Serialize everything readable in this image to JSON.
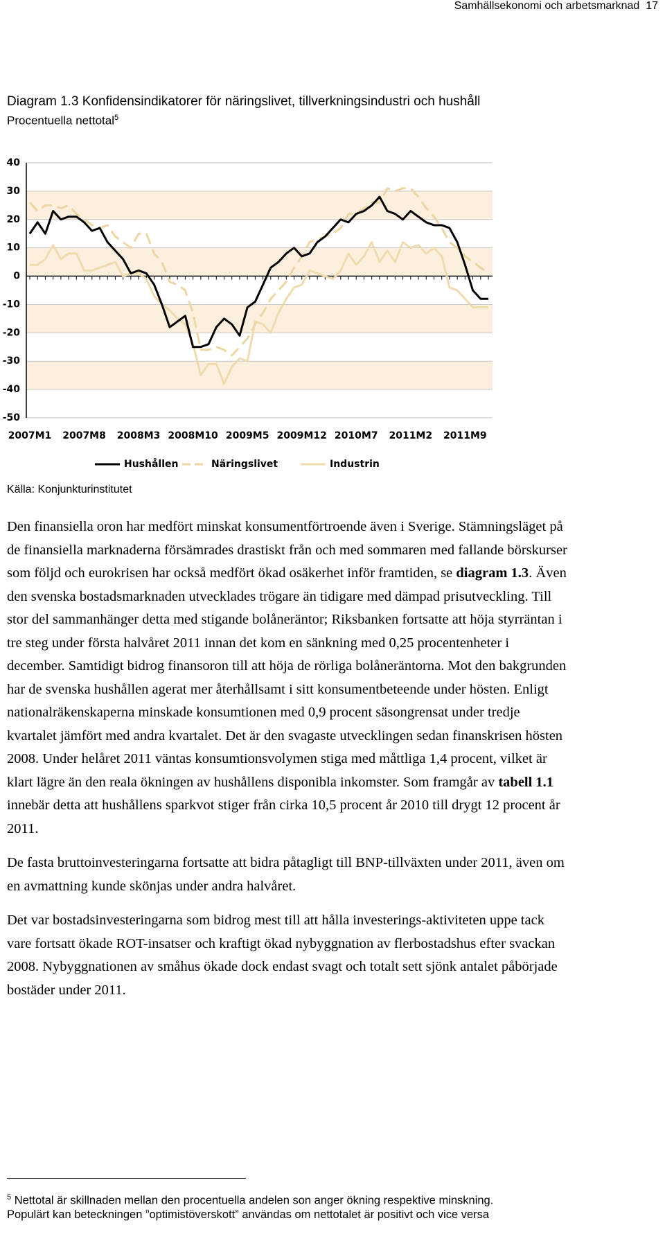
{
  "header": {
    "running_title": "Samhällsekonomi och arbetsmarknad",
    "page_number": "17"
  },
  "chart_data": {
    "type": "line",
    "title": "Diagram 1.3 Konfidensindikatorer för näringslivet, tillverkningsindustri och hushåll",
    "subtitle": "Procentuella nettotal",
    "subtitle_note": "5",
    "categories": [
      "2007M1",
      null,
      null,
      null,
      null,
      null,
      null,
      "2007M8",
      null,
      null,
      null,
      null,
      null,
      null,
      "2008M3",
      null,
      null,
      null,
      null,
      null,
      null,
      "2008M10",
      null,
      null,
      null,
      null,
      null,
      null,
      "2009M5",
      null,
      null,
      null,
      null,
      null,
      null,
      "2009M12",
      null,
      null,
      null,
      null,
      null,
      null,
      "2010M7",
      null,
      null,
      null,
      null,
      null,
      null,
      "2011M2",
      null,
      null,
      null,
      null,
      null,
      null,
      "2011M9",
      null,
      null,
      null
    ],
    "series": [
      {
        "name": "Hushållen",
        "color": "#000000",
        "style": "solid",
        "values": [
          15,
          19,
          15,
          23,
          20,
          21,
          21,
          19,
          16,
          17,
          12,
          9,
          6,
          1,
          2,
          1,
          -3,
          -10,
          -18,
          -16,
          -14,
          -25,
          -25,
          -24,
          -18,
          -15,
          -17,
          -21,
          -11,
          -9,
          -3,
          3,
          5,
          8,
          10,
          7,
          8,
          12,
          14,
          17,
          20,
          19,
          22,
          23,
          25,
          28,
          23,
          22,
          20,
          23,
          21,
          19,
          18,
          18,
          17,
          12,
          4,
          -5,
          -8,
          -8
        ]
      },
      {
        "name": "Näringslivet",
        "color": "#eed6a4",
        "style": "dashed",
        "values": [
          26,
          23,
          25,
          25,
          24,
          25,
          22,
          20,
          18,
          17,
          18,
          14,
          12,
          10,
          15,
          15,
          8,
          5,
          -2,
          -3,
          -5,
          -13,
          -26,
          -26,
          -25,
          -26,
          -28,
          -25,
          -22,
          -17,
          -13,
          -8,
          -5,
          -2,
          3,
          7,
          12,
          13,
          14,
          15,
          17,
          22,
          22,
          24,
          26,
          26,
          31,
          30,
          31,
          31,
          28,
          24,
          21,
          17,
          12,
          10,
          7,
          5,
          3,
          1
        ]
      },
      {
        "name": "Industrin",
        "color": "#f0dbaf",
        "style": "solid",
        "values": [
          4,
          4,
          6,
          11,
          6,
          8,
          8,
          2,
          2,
          3,
          4,
          5,
          0,
          1,
          1,
          -1,
          -7,
          -10,
          -12,
          -15,
          -17,
          -24,
          -35,
          -31,
          -31,
          -38,
          -32,
          -29,
          -30,
          -16,
          -17,
          -20,
          -13,
          -8,
          -4,
          -3,
          2,
          1,
          0,
          -1,
          2,
          8,
          4,
          7,
          12,
          5,
          9,
          5,
          12,
          10,
          11,
          8,
          10,
          7,
          -4,
          -5,
          -8,
          -11,
          -11,
          -11
        ]
      }
    ],
    "ylim": [
      -50,
      40
    ],
    "yticks": [
      40,
      30,
      20,
      10,
      0,
      -10,
      -20,
      -30,
      -40,
      -50
    ],
    "grid": true,
    "band_color": "#fcefdd",
    "legend": "bottom",
    "source": "Källa: Konjunkturinstitutet"
  },
  "body": {
    "paragraphs": [
      [
        {
          "text": "Den finansiella oron har medfört minskat konsumentförtroende även i Sverige. Stämningsläget på de finansiella marknaderna försämrades drastiskt från och med sommaren med fallande börskurser som följd och eurokrisen har också medfört ökad osäkerhet inför framtiden, se "
        },
        {
          "text": "diagram 1.3",
          "bold": true
        },
        {
          "text": ". Även den svenska bostadsmarknaden utvecklades trögare än tidigare med dämpad prisutveckling. Till stor del sammanhänger detta med stigande bolåneräntor; Riksbanken fortsatte att höja styrräntan i tre steg under första halvåret 2011 innan det kom en sänkning med 0,25 procentenheter i december. Samtidigt bidrog finansoron till att höja de rörliga bolåneräntorna. Mot den bakgrunden har de svenska hushållen agerat mer återhållsamt i sitt konsumentbeteende under hösten. Enligt nationalräkenskaperna minskade konsumtionen med 0,9 procent säsongrensat under tredje kvartalet jämfört med andra kvartalet. Det är den svagaste utvecklingen sedan finanskrisen hösten 2008. Under helåret 2011 väntas konsumtionsvolymen stiga med måttliga 1,4 procent, vilket är klart lägre än den reala ökningen av hushållens disponibla inkomster. Som framgår av "
        },
        {
          "text": "tabell 1.1",
          "bold": true
        },
        {
          "text": " innebär detta att hushållens sparkvot stiger från cirka 10,5 procent år 2010 till drygt 12 procent år 2011."
        }
      ],
      [
        {
          "text": "De fasta bruttoinvesteringarna fortsatte att bidra påtagligt till BNP-tillväxten under 2011, även om en avmattning kunde skönjas under andra halvåret."
        }
      ],
      [
        {
          "text": "Det var bostadsinvesteringarna som bidrog mest till att hålla investerings-aktiviteten uppe tack vare fortsatt ökade ROT-insatser och kraftigt ökad nybyggnation av flerbostadshus efter svackan 2008. Nybyggnationen av småhus ökade dock endast svagt och totalt sett sjönk antalet påbörjade bostäder under 2011."
        }
      ]
    ]
  },
  "footnote": {
    "number": "5",
    "text": "Nettotal är skillnaden mellan den procentuella andelen son anger ökning respektive minskning. Populärt kan beteckningen ”optimistöverskott” användas om nettotalet är positivt och vice versa"
  }
}
